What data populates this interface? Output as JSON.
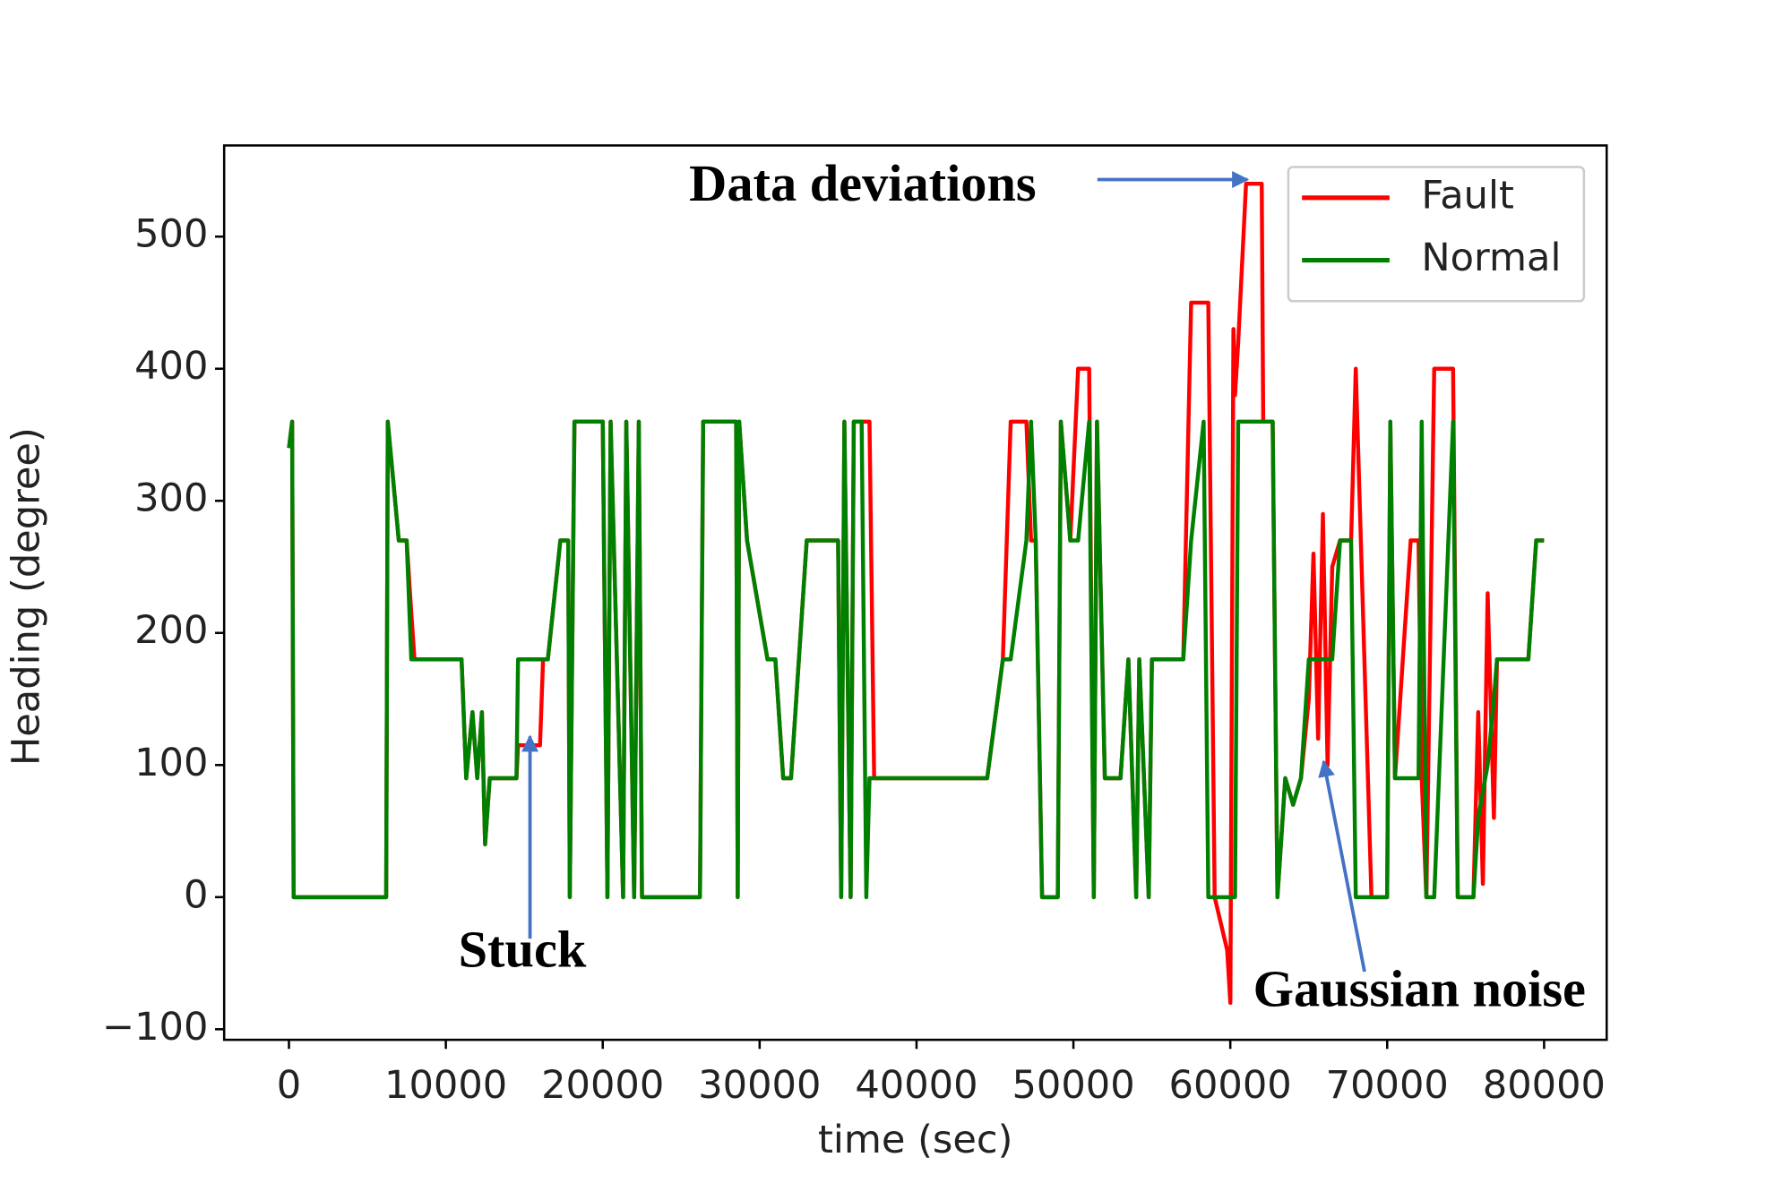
{
  "chart_data": {
    "type": "line",
    "xlabel": "time (sec)",
    "ylabel": "Heading (degree)",
    "x": [
      0,
      200,
      300,
      6200,
      6300,
      7000,
      7500,
      7800,
      8000,
      11000,
      11300,
      11700,
      12000,
      12300,
      12500,
      12800,
      14500,
      14600,
      16000,
      16200,
      16500,
      17300,
      17800,
      17900,
      18200,
      20000,
      20300,
      20500,
      21300,
      21500,
      22000,
      22300,
      22500,
      26200,
      26400,
      28500,
      28600,
      28700,
      29200,
      30500,
      31000,
      31500,
      32000,
      33000,
      35000,
      35200,
      35400,
      35800,
      36000,
      36500,
      36800,
      37000,
      37300,
      44500,
      45500,
      46000,
      47000,
      47300,
      47600,
      48000,
      49000,
      49200,
      49800,
      50300,
      51000,
      51300,
      51500,
      52000,
      53000,
      53500,
      54000,
      54200,
      54800,
      55000,
      57000,
      57500,
      58300,
      58600,
      59000,
      59800,
      60000,
      60200,
      60300,
      60500,
      61000,
      62000,
      62100,
      62700,
      63000,
      63500,
      64000,
      64500,
      65000,
      65300,
      65600,
      65900,
      66200,
      66500,
      67000,
      67700,
      68000,
      69000,
      70000,
      70200,
      70500,
      71500,
      72000,
      72200,
      72500,
      73000,
      74200,
      74500,
      75500,
      75800,
      76100,
      76400,
      76800,
      77000,
      79000,
      79500,
      80000
    ],
    "series": [
      {
        "name": "Fault",
        "color": "#ff0000",
        "values": [
          340,
          360,
          0,
          0,
          360,
          270,
          270,
          215,
          180,
          180,
          90,
          140,
          90,
          140,
          40,
          90,
          90,
          115,
          115,
          180,
          180,
          270,
          270,
          0,
          360,
          360,
          0,
          360,
          0,
          360,
          0,
          360,
          0,
          0,
          360,
          360,
          0,
          360,
          270,
          180,
          180,
          90,
          90,
          270,
          270,
          0,
          360,
          0,
          360,
          360,
          360,
          360,
          90,
          90,
          180,
          360,
          360,
          270,
          270,
          0,
          0,
          360,
          270,
          400,
          400,
          0,
          360,
          90,
          90,
          180,
          0,
          180,
          0,
          180,
          180,
          450,
          450,
          450,
          0,
          -40,
          -80,
          430,
          380,
          420,
          540,
          540,
          360,
          360,
          0,
          90,
          70,
          90,
          150,
          260,
          120,
          290,
          100,
          250,
          270,
          270,
          400,
          0,
          0,
          360,
          90,
          270,
          270,
          90,
          0,
          400,
          400,
          0,
          0,
          140,
          10,
          230,
          60,
          180,
          180,
          270,
          270
        ]
      },
      {
        "name": "Normal",
        "color": "#008000",
        "values": [
          340,
          360,
          0,
          0,
          360,
          270,
          270,
          180,
          180,
          180,
          90,
          140,
          90,
          140,
          40,
          90,
          90,
          180,
          180,
          180,
          180,
          270,
          270,
          0,
          360,
          360,
          0,
          360,
          0,
          360,
          0,
          360,
          0,
          0,
          360,
          360,
          0,
          360,
          270,
          180,
          180,
          90,
          90,
          270,
          270,
          0,
          360,
          0,
          360,
          360,
          0,
          90,
          90,
          90,
          180,
          180,
          270,
          360,
          270,
          0,
          0,
          360,
          270,
          270,
          360,
          0,
          360,
          90,
          90,
          180,
          0,
          180,
          0,
          180,
          180,
          270,
          360,
          0,
          0,
          0,
          0,
          0,
          0,
          360,
          360,
          360,
          360,
          360,
          0,
          90,
          70,
          90,
          180,
          180,
          180,
          180,
          180,
          180,
          270,
          270,
          0,
          0,
          0,
          360,
          90,
          90,
          90,
          360,
          0,
          0,
          360,
          0,
          0,
          60,
          80,
          100,
          150,
          180,
          180,
          270,
          270
        ]
      }
    ],
    "xlim": [
      -4130,
      83990
    ],
    "ylim": [
      -108,
      569
    ],
    "xticks": [
      0,
      10000,
      20000,
      30000,
      40000,
      50000,
      60000,
      70000,
      80000
    ],
    "yticks": [
      {
        "value": -100,
        "label": "−100"
      },
      0,
      100,
      200,
      300,
      400,
      500
    ],
    "legend": "upper right",
    "annotations": [
      "Data deviations",
      "Stuck",
      "Gaussian noise"
    ]
  }
}
